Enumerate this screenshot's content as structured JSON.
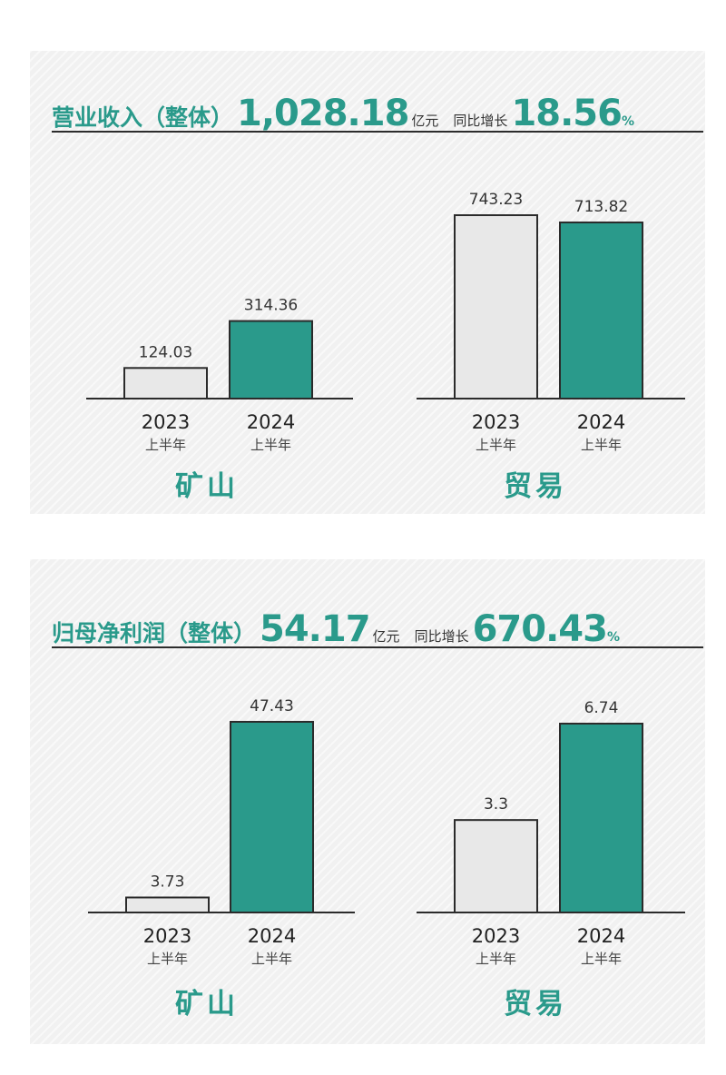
{
  "colors": {
    "accent": "#2a9a8b",
    "bar_2023": "#e8e8e8",
    "bar_2024": "#2a9a8b",
    "bar_stroke": "#2b2b2b"
  },
  "revenue": {
    "title": "营业收入（整体）",
    "value": "1,028.18",
    "unit": "亿元",
    "yoy_label": "同比增长",
    "yoy_value": "18.56",
    "yoy_unit": "%"
  },
  "profit": {
    "title": "归母净利润（整体）",
    "value": "54.17",
    "unit": "亿元",
    "yoy_label": "同比增长",
    "yoy_value": "670.43",
    "yoy_unit": "%"
  },
  "chart_data": [
    {
      "type": "bar",
      "title": "矿山",
      "categories": [
        {
          "year": "2023",
          "sub": "上半年"
        },
        {
          "year": "2024",
          "sub": "上半年"
        }
      ],
      "values": [
        124.03,
        314.36
      ],
      "labels": [
        "124.03",
        "314.36"
      ],
      "ylim": [
        0,
        743.23
      ]
    },
    {
      "type": "bar",
      "title": "贸易",
      "categories": [
        {
          "year": "2023",
          "sub": "上半年"
        },
        {
          "year": "2024",
          "sub": "上半年"
        }
      ],
      "values": [
        743.23,
        713.82
      ],
      "labels": [
        "743.23",
        "713.82"
      ],
      "ylim": [
        0,
        743.23
      ]
    },
    {
      "type": "bar",
      "title": "矿山",
      "categories": [
        {
          "year": "2023",
          "sub": "上半年"
        },
        {
          "year": "2024",
          "sub": "上半年"
        }
      ],
      "values": [
        3.73,
        47.43
      ],
      "labels": [
        "3.73",
        "47.43"
      ],
      "ylim": [
        0,
        47.43
      ]
    },
    {
      "type": "bar",
      "title": "贸易",
      "categories": [
        {
          "year": "2023",
          "sub": "上半年"
        },
        {
          "year": "2024",
          "sub": "上半年"
        }
      ],
      "values": [
        3.3,
        6.74
      ],
      "labels": [
        "3.3",
        "6.74"
      ],
      "ylim": [
        0,
        6.74
      ]
    }
  ]
}
